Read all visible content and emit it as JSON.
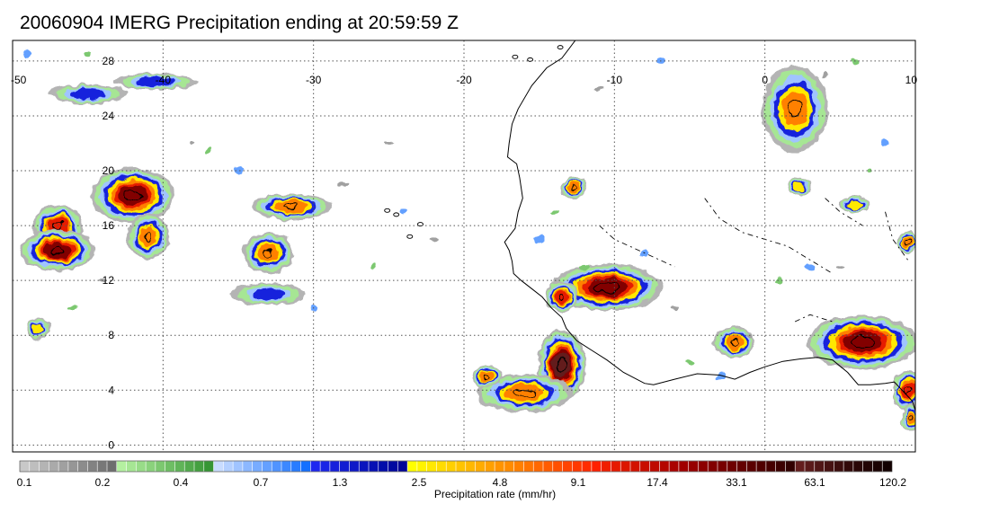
{
  "title": "20060904 IMERG Precipitation ending at 20:59:59 Z",
  "map": {
    "lon_range": [
      -50,
      10
    ],
    "lat_range": [
      -0.5,
      29.5
    ],
    "lon_ticks": [
      "-50",
      "-40",
      "-30",
      "-20",
      "-10",
      "0",
      "10"
    ],
    "lat_ticks": [
      "0",
      "4",
      "8",
      "12",
      "16",
      "20",
      "24",
      "28"
    ],
    "grid": true,
    "colors": {
      "land_outline": "#000000",
      "gridline": "#555555"
    }
  },
  "colorbar": {
    "title": "Precipitation rate (mm/hr)",
    "labels": [
      "0.1",
      "0.2",
      "0.4",
      "0.7",
      "1.3",
      "2.5",
      "4.8",
      "9.1",
      "17.4",
      "33.1",
      "63.1",
      "120.2"
    ],
    "color_groups": [
      [
        "#c8c8c8",
        "#bebebe",
        "#b4b4b4",
        "#aaaaaa",
        "#a0a0a0",
        "#969696",
        "#8c8c8c",
        "#828282",
        "#787878",
        "#6e6e6e"
      ],
      [
        "#b4f0a0",
        "#a6e694",
        "#98dc88",
        "#8ad27c",
        "#7cc870",
        "#6ebe64",
        "#60b458",
        "#52aa4c",
        "#44a040",
        "#369634"
      ],
      [
        "#c8dcff",
        "#b4d0ff",
        "#a0c4ff",
        "#8cb8ff",
        "#78acff",
        "#64a0ff",
        "#5094ff",
        "#3c88ff",
        "#287cff",
        "#1470ff"
      ],
      [
        "#1e28f0",
        "#1a24e6",
        "#1620dc",
        "#121cd2",
        "#0e18c8",
        "#0a14be",
        "#0610b4",
        "#020caa",
        "#0008a0",
        "#000496"
      ],
      [
        "#ffff00",
        "#fff400",
        "#ffe800",
        "#ffdc00",
        "#ffd000",
        "#ffc400",
        "#ffb800",
        "#ffac00",
        "#ffa000",
        "#ff9400"
      ],
      [
        "#ff8c00",
        "#ff8000",
        "#ff7400",
        "#ff6800",
        "#ff5c00",
        "#ff5000",
        "#ff4400",
        "#ff3800",
        "#ff2c00",
        "#ff2000"
      ],
      [
        "#f01e00",
        "#e61a00",
        "#dc1600",
        "#d21200",
        "#c80e00",
        "#be0a00",
        "#b40600",
        "#aa0200",
        "#a00000",
        "#960000"
      ],
      [
        "#8c0000",
        "#820000",
        "#780000",
        "#6e0000",
        "#640000",
        "#5a0000",
        "#500000",
        "#460000",
        "#3c0000",
        "#320000"
      ],
      [
        "#641e1e",
        "#5a1a1a",
        "#501616",
        "#461212",
        "#3c0e0e",
        "#320a0a",
        "#2a0606",
        "#220404",
        "#1a0202",
        "#120000"
      ]
    ]
  },
  "rain_systems": [
    {
      "name": "nw-streak-upper",
      "lon": -40.5,
      "lat": 26.5,
      "rx": 2.6,
      "ry": 0.4,
      "peak": 1.3
    },
    {
      "name": "nw-streak-lower",
      "lon": -45.0,
      "lat": 25.6,
      "rx": 2.5,
      "ry": 0.5,
      "peak": 1.3
    },
    {
      "name": "cluster-w-north",
      "lon": -42.0,
      "lat": 18.2,
      "rx": 2.6,
      "ry": 1.8,
      "peak": 17.4
    },
    {
      "name": "cluster-w-mid",
      "lon": -47.0,
      "lat": 16.0,
      "rx": 1.5,
      "ry": 1.3,
      "peak": 9.1
    },
    {
      "name": "cluster-w-south",
      "lon": -47.0,
      "lat": 14.2,
      "rx": 2.3,
      "ry": 1.3,
      "peak": 17.4
    },
    {
      "name": "cluster-w-east",
      "lon": -41.0,
      "lat": 15.2,
      "rx": 1.2,
      "ry": 1.5,
      "peak": 4.8
    },
    {
      "name": "cell-w-small",
      "lon": -48.3,
      "lat": 8.5,
      "rx": 0.6,
      "ry": 0.6,
      "peak": 2.5
    },
    {
      "name": "band-central",
      "lon": -31.5,
      "lat": 17.4,
      "rx": 2.5,
      "ry": 0.8,
      "peak": 4.8
    },
    {
      "name": "cells-central",
      "lon": -33.0,
      "lat": 14.0,
      "rx": 1.5,
      "ry": 1.3,
      "peak": 4.8
    },
    {
      "name": "streak-central-south",
      "lon": -33.0,
      "lat": 11.0,
      "rx": 2.3,
      "ry": 0.6,
      "peak": 1.3
    },
    {
      "name": "cell-senegal",
      "lon": -12.7,
      "lat": 18.8,
      "rx": 0.7,
      "ry": 0.6,
      "peak": 4.8
    },
    {
      "name": "band-guinea-coast",
      "lon": -10.5,
      "lat": 11.5,
      "rx": 3.5,
      "ry": 1.5,
      "peak": 17.4
    },
    {
      "name": "cell-mauritania",
      "lon": -13.5,
      "lat": 10.8,
      "rx": 0.9,
      "ry": 0.9,
      "peak": 9.1
    },
    {
      "name": "core-atlantic",
      "lon": -13.5,
      "lat": 5.8,
      "rx": 1.4,
      "ry": 2.4,
      "peak": 33.1
    },
    {
      "name": "arc-atlantic-sw",
      "lon": -16.0,
      "lat": 3.8,
      "rx": 3.0,
      "ry": 1.2,
      "peak": 4.8
    },
    {
      "name": "cell-atlantic-west",
      "lon": -18.5,
      "lat": 5.0,
      "rx": 0.8,
      "ry": 0.6,
      "peak": 4.8
    },
    {
      "name": "cluster-ghana",
      "lon": -2.0,
      "lat": 7.5,
      "rx": 1.2,
      "ry": 0.9,
      "peak": 4.8
    },
    {
      "name": "band-nigeria",
      "lon": 6.5,
      "lat": 7.5,
      "rx": 3.5,
      "ry": 1.8,
      "peak": 17.4
    },
    {
      "name": "cell-east-edge",
      "lon": 9.5,
      "lat": 4.0,
      "rx": 0.8,
      "ry": 1.3,
      "peak": 9.1
    },
    {
      "name": "cell-east-edge-lower",
      "lon": 9.7,
      "lat": 2.0,
      "rx": 0.4,
      "ry": 0.8,
      "peak": 4.8
    },
    {
      "name": "cell-sahel-east",
      "lon": 9.5,
      "lat": 14.8,
      "rx": 0.5,
      "ry": 0.6,
      "peak": 4.8
    },
    {
      "name": "band-northeast",
      "lon": 2.0,
      "lat": 24.5,
      "rx": 2.0,
      "ry": 3.0,
      "peak": 4.8
    },
    {
      "name": "cell-north-small",
      "lon": 2.3,
      "lat": 18.8,
      "rx": 0.6,
      "ry": 0.5,
      "peak": 2.5
    },
    {
      "name": "cell-north-small-2",
      "lon": 6.0,
      "lat": 17.5,
      "rx": 0.8,
      "ry": 0.4,
      "peak": 2.5
    }
  ]
}
